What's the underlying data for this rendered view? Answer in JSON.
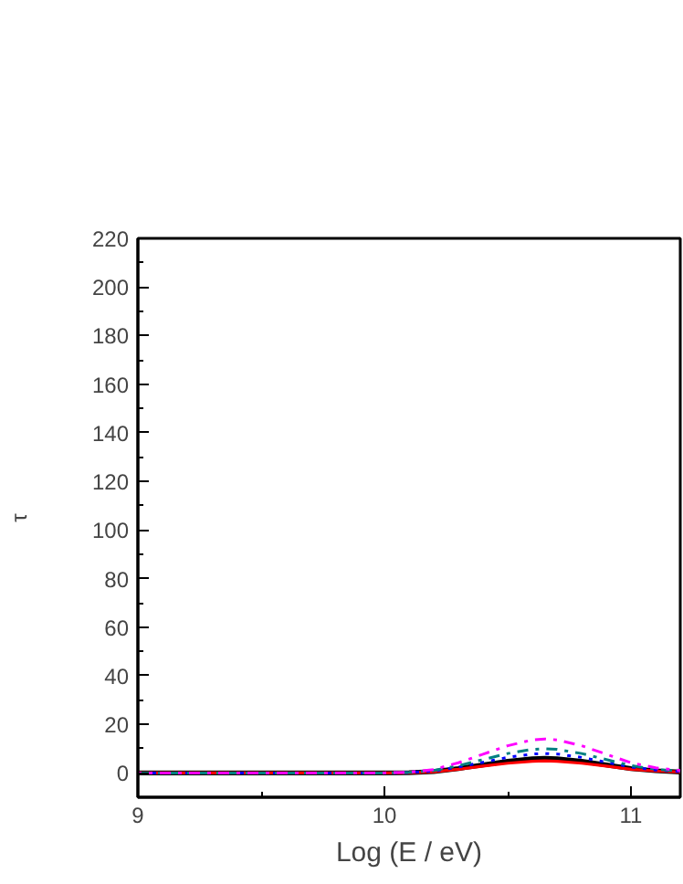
{
  "chart_data": {
    "type": "line",
    "xlabel": "Log (E / eV)",
    "ylabel": "τ",
    "xlim": [
      9,
      11.2
    ],
    "ylim": [
      -10,
      220
    ],
    "xticks": [
      9,
      10,
      11
    ],
    "yticks": [
      0,
      20,
      40,
      60,
      80,
      100,
      120,
      140,
      160,
      180,
      200,
      220
    ],
    "grid": false,
    "x": [
      9,
      10,
      10.1,
      10.2,
      10.3,
      10.4,
      10.5,
      10.6,
      10.65,
      10.7,
      10.8,
      10.9,
      11,
      11.1,
      11.2
    ],
    "series": [
      {
        "color": "#000000",
        "line_style": "solid",
        "values": [
          0,
          0,
          0.1,
          0.6,
          1.8,
          3.3,
          4.8,
          5.8,
          6,
          5.8,
          4.8,
          3.3,
          1.8,
          0.9,
          0.4
        ]
      },
      {
        "color": "#ff0000",
        "line_style": "solid",
        "values": [
          0,
          0,
          0.1,
          0.5,
          1.5,
          2.8,
          4,
          4.8,
          5,
          4.8,
          4,
          2.8,
          1.5,
          0.8,
          0.4
        ]
      },
      {
        "color": "#0000ff",
        "line_style": "dotted",
        "values": [
          0,
          0,
          0.2,
          0.8,
          2.4,
          4.4,
          6.4,
          7.8,
          8,
          7.8,
          6.4,
          4.4,
          2.4,
          1.2,
          0.6
        ]
      },
      {
        "color": "#008080",
        "line_style": "dashdot",
        "values": [
          0,
          0,
          0.2,
          1,
          3,
          5.5,
          8,
          9.7,
          10,
          9.7,
          8,
          5.5,
          3,
          1.5,
          0.7
        ]
      },
      {
        "color": "#ff00ff",
        "line_style": "dashdot",
        "values": [
          0,
          0,
          0.3,
          1.4,
          4.2,
          7.7,
          11.2,
          13.6,
          14,
          13.6,
          11.2,
          7.7,
          4.2,
          2.1,
          1
        ]
      }
    ]
  }
}
